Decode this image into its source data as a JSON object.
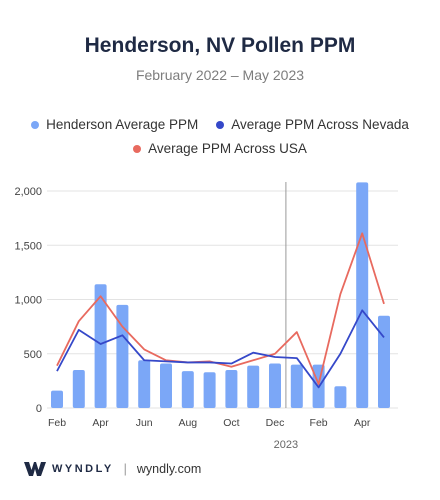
{
  "title": "Henderson, NV Pollen PPM",
  "subtitle": "February 2022 – May 2023",
  "legend": {
    "bar": "Henderson Average PPM",
    "nevada": "Average PPM Across Nevada",
    "usa": "Average PPM Across USA"
  },
  "colors": {
    "bar": "#7ba7f7",
    "nevada": "#3548c9",
    "usa": "#e86a5f",
    "divider": "#999999"
  },
  "footer": {
    "brand": "WYNDLY",
    "separator": "|",
    "url": "wyndly.com"
  },
  "chart_data": {
    "type": "bar",
    "ylim": [
      0,
      2000
    ],
    "yticks": [
      0,
      500,
      1000,
      1500,
      2000
    ],
    "ytick_labels": [
      "0",
      "500",
      "1,000",
      "1,500",
      "2,000"
    ],
    "xtick_labels": [
      "Feb",
      "Apr",
      "Jun",
      "Aug",
      "Oct",
      "Dec",
      "Feb",
      "Apr"
    ],
    "year_label": "2023",
    "series": [
      {
        "name": "Henderson Average PPM",
        "type": "bar",
        "values": [
          160,
          350,
          1140,
          950,
          440,
          410,
          340,
          330,
          350,
          390,
          410,
          400,
          400,
          200,
          2080,
          850
        ]
      },
      {
        "name": "Average PPM Across Nevada",
        "type": "line",
        "values": [
          340,
          720,
          590,
          670,
          440,
          430,
          420,
          420,
          410,
          510,
          470,
          460,
          190,
          500,
          900,
          650
        ]
      },
      {
        "name": "Average PPM Across USA",
        "type": "line",
        "values": [
          390,
          800,
          1030,
          750,
          540,
          440,
          420,
          430,
          380,
          440,
          500,
          700,
          220,
          1050,
          1610,
          960
        ]
      }
    ]
  }
}
